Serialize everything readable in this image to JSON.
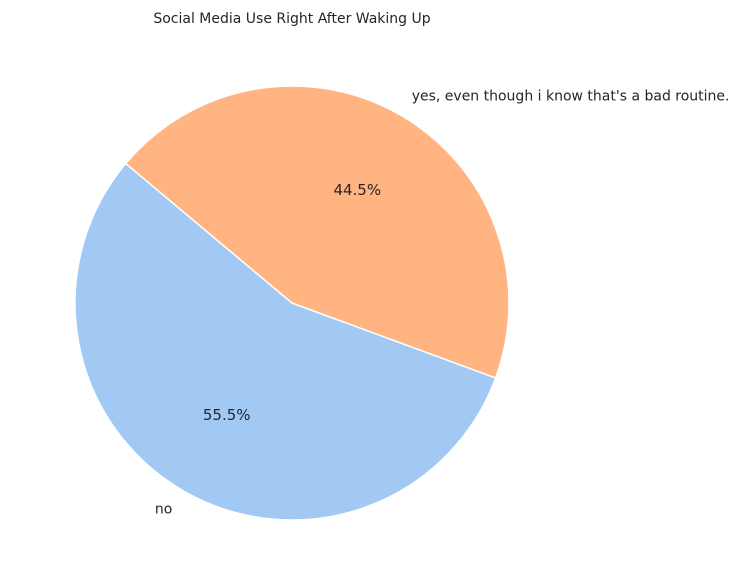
{
  "chart_data": {
    "type": "pie",
    "title": "Social Media Use Right After Waking Up",
    "categories": [
      "no",
      "yes, even though i know that's a bad routine."
    ],
    "values": [
      55.5,
      44.5
    ],
    "percent_labels": [
      "55.5%",
      "44.5%"
    ],
    "colors": [
      "#a1c9f4",
      "#ffb482"
    ],
    "start_angle_deg": 140,
    "direction": "counterclockwise",
    "slice_edge_color": "#ffffff",
    "legend": "none"
  }
}
